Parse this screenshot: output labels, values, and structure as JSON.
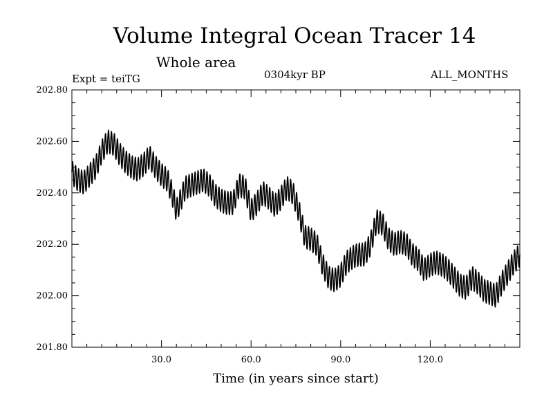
{
  "header": {
    "title": "Volume Integral Ocean Tracer 14",
    "subtitle": "Whole area",
    "expt": "Expt = teiTG",
    "period": "0304kyr BP",
    "months": "ALL_MONTHS"
  },
  "chart_data": {
    "type": "line",
    "xlabel": "Time (in years since start)",
    "ylabel": "",
    "xlim": [
      0,
      150
    ],
    "ylim": [
      201.8,
      202.8
    ],
    "x_ticks": [
      30,
      60,
      90,
      120
    ],
    "x_tick_labels": [
      "30.0",
      "60.0",
      "90.0",
      "120.0"
    ],
    "y_ticks": [
      201.8,
      202.0,
      202.2,
      202.4,
      202.6,
      202.8
    ],
    "y_tick_labels": [
      "201.80",
      "202.00",
      "202.20",
      "202.40",
      "202.60",
      "202.80"
    ],
    "grid": false,
    "line_color": "#000000",
    "series": [
      {
        "name": "",
        "seasonal_amplitude": 0.045,
        "x": [
          0,
          2,
          4,
          6,
          8,
          10,
          12,
          14,
          16,
          18,
          20,
          22,
          24,
          26,
          28,
          30,
          32,
          34,
          35,
          36,
          38,
          40,
          42,
          44,
          46,
          48,
          50,
          52,
          54,
          56,
          58,
          60,
          62,
          64,
          66,
          68,
          70,
          72,
          74,
          76,
          78,
          80,
          82,
          84,
          86,
          88,
          90,
          92,
          94,
          96,
          98,
          100,
          102,
          104,
          106,
          108,
          110,
          112,
          114,
          116,
          118,
          120,
          122,
          124,
          126,
          128,
          130,
          132,
          134,
          136,
          138,
          140,
          142,
          144,
          146,
          148,
          150
        ],
        "y": [
          202.48,
          202.45,
          202.44,
          202.47,
          202.5,
          202.56,
          202.6,
          202.59,
          202.55,
          202.52,
          202.5,
          202.49,
          202.51,
          202.54,
          202.5,
          202.47,
          202.45,
          202.38,
          202.33,
          202.36,
          202.42,
          202.43,
          202.44,
          202.45,
          202.43,
          202.39,
          202.37,
          202.36,
          202.36,
          202.43,
          202.42,
          202.33,
          202.36,
          202.4,
          202.38,
          202.35,
          202.38,
          202.42,
          202.4,
          202.33,
          202.23,
          202.22,
          202.2,
          202.12,
          202.07,
          202.06,
          202.08,
          202.13,
          202.15,
          202.16,
          202.16,
          202.2,
          202.29,
          202.28,
          202.22,
          202.2,
          202.21,
          202.2,
          202.16,
          202.14,
          202.1,
          202.12,
          202.13,
          202.12,
          202.1,
          202.07,
          202.04,
          202.03,
          202.07,
          202.05,
          202.02,
          202.01,
          202.0,
          202.05,
          202.09,
          202.13,
          202.16
        ]
      }
    ]
  }
}
